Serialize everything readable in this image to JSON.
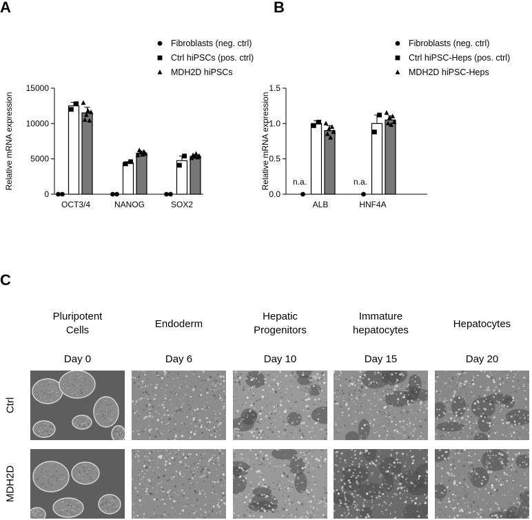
{
  "panels": {
    "a": "A",
    "b": "B",
    "c": "C"
  },
  "chart_data": [
    {
      "id": "A",
      "type": "bar",
      "title": "",
      "ylabel": "Relative mRNA expression",
      "xlabel": "",
      "ylim": [
        0,
        15000
      ],
      "yticks": [
        0,
        5000,
        10000,
        15000
      ],
      "ytick_labels": [
        "0",
        "5000",
        "10000",
        "15000"
      ],
      "categories": [
        "OCT3/4",
        "NANOG",
        "SOX2"
      ],
      "series": [
        {
          "name": "Fibroblasts (neg. ctrl)",
          "marker": "circle",
          "fill": "#ffffff",
          "values": [
            0,
            0,
            0
          ],
          "errors": [
            0,
            0,
            0
          ],
          "points": [
            [
              0,
              0
            ],
            [
              0,
              0
            ],
            [
              0,
              0
            ]
          ]
        },
        {
          "name": "Ctrl hiPSCs (pos. ctrl)",
          "marker": "square",
          "fill": "#ffffff",
          "values": [
            12500,
            4450,
            4750
          ],
          "errors": [
            500,
            150,
            650
          ],
          "points": [
            [
              12000,
              12800
            ],
            [
              4300,
              4600
            ],
            [
              4100,
              5400
            ]
          ]
        },
        {
          "name": "MDH2D hiPSCs",
          "marker": "triangle",
          "fill": "#777777",
          "values": [
            11500,
            5800,
            5350
          ],
          "errors": [
            800,
            300,
            250
          ],
          "points": [
            [
              12900,
              10500,
              11200,
              11800,
              10400,
              11600
            ],
            [
              5500,
              6200,
              5900,
              5600,
              6000,
              5700
            ],
            [
              5100,
              5500,
              5300,
              5700,
              5200,
              5400
            ]
          ]
        }
      ],
      "legend": "top-right",
      "grid": false,
      "annotations": []
    },
    {
      "id": "B",
      "type": "bar",
      "title": "",
      "ylabel": "Relative mRNA expression",
      "xlabel": "",
      "ylim": [
        0,
        1.5
      ],
      "yticks": [
        0,
        0.5,
        1.0,
        1.5
      ],
      "ytick_labels": [
        "0.0",
        "0.5",
        "1.0",
        "1.5"
      ],
      "categories": [
        "ALB",
        "HNF4A"
      ],
      "series": [
        {
          "name": "Fibroblasts (neg. ctrl)",
          "marker": "circle",
          "fill": "#ffffff",
          "values": [
            0,
            0
          ],
          "errors": [
            0,
            0
          ],
          "points": [
            [
              0
            ],
            [
              0
            ]
          ]
        },
        {
          "name": "Ctrl hiPSC-Heps (pos. ctrl)",
          "marker": "square",
          "fill": "#ffffff",
          "values": [
            1.0,
            1.0
          ],
          "errors": [
            0.04,
            0.12
          ],
          "points": [
            [
              0.97,
              1.02
            ],
            [
              0.88,
              1.12
            ]
          ]
        },
        {
          "name": "MDH2D hiPSC-Heps",
          "marker": "triangle",
          "fill": "#777777",
          "values": [
            0.9,
            1.05
          ],
          "errors": [
            0.07,
            0.06
          ],
          "points": [
            [
              1.0,
              0.85,
              0.92,
              0.8,
              0.95,
              0.88
            ],
            [
              1.15,
              1.0,
              1.08,
              0.98,
              1.1,
              1.02
            ]
          ]
        }
      ],
      "legend": "top-right",
      "grid": false,
      "annotations": [
        {
          "category": "ALB",
          "text": "n.a."
        },
        {
          "category": "HNF4A",
          "text": "n.a."
        }
      ]
    }
  ],
  "panel_c": {
    "stages": [
      {
        "title": "Pluripotent Cells",
        "lines": [
          "Pluripotent",
          "Cells"
        ],
        "day": "Day 0"
      },
      {
        "title": "Endoderm",
        "lines": [
          "Endoderm"
        ],
        "day": "Day 6"
      },
      {
        "title": "Hepatic Progenitors",
        "lines": [
          "Hepatic",
          "Progenitors"
        ],
        "day": "Day 10"
      },
      {
        "title": "Immature hepatocytes",
        "lines": [
          "Immature",
          "hepatocytes"
        ],
        "day": "Day 15"
      },
      {
        "title": "Hepatocytes",
        "lines": [
          "Hepatocytes"
        ],
        "day": "Day 20"
      }
    ],
    "rows": [
      "Ctrl",
      "MDH2D"
    ]
  }
}
